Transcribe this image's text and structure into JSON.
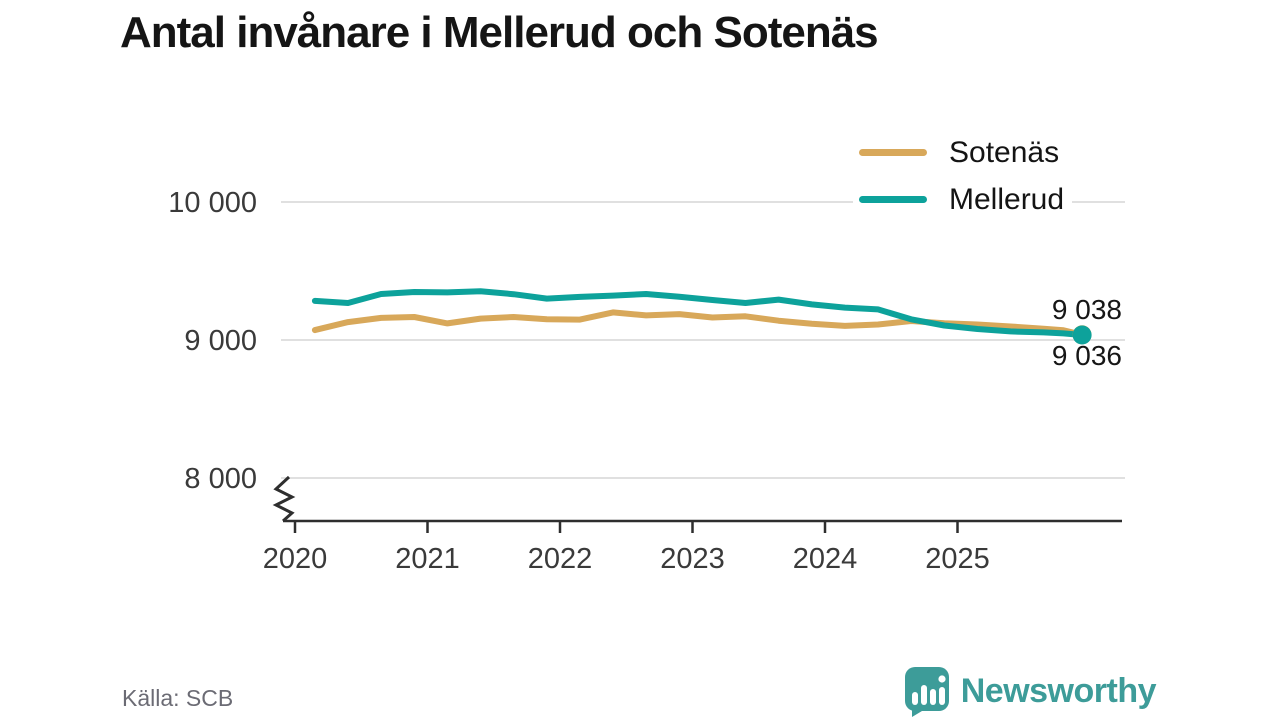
{
  "source_note": "Källa: SCB",
  "branding": {
    "logo_text": "Newsworthy",
    "logo_icon": "bar-chart-speech-bubble",
    "color": "#3d9c99"
  },
  "chart_data": {
    "type": "line",
    "title": "Antal invånare i Mellerud och Sotenäs",
    "xlabel": "",
    "ylabel": "",
    "x_ticks": [
      2020,
      2021,
      2022,
      2023,
      2024,
      2025
    ],
    "y_ticks": [
      {
        "label": "10 000",
        "value": 10000
      },
      {
        "label": "9 000",
        "value": 9000
      },
      {
        "label": "8 000",
        "value": 8000
      }
    ],
    "grid": true,
    "axis_break_at_bottom": true,
    "legend_position": "top-right",
    "style": {
      "grid_color": "#e0e0e0",
      "axis_color": "#2e2e2e",
      "tick_text_color": "#3a3a3a"
    },
    "series": [
      {
        "name": "Sotenäs",
        "color": "#d8a85a",
        "end_label": "9 038",
        "end_value": 9038,
        "points": [
          [
            2020.15,
            9072
          ],
          [
            2020.4,
            9130
          ],
          [
            2020.65,
            9160
          ],
          [
            2020.9,
            9167
          ],
          [
            2021.15,
            9120
          ],
          [
            2021.4,
            9155
          ],
          [
            2021.65,
            9167
          ],
          [
            2021.9,
            9150
          ],
          [
            2022.15,
            9148
          ],
          [
            2022.4,
            9200
          ],
          [
            2022.65,
            9178
          ],
          [
            2022.9,
            9188
          ],
          [
            2023.15,
            9163
          ],
          [
            2023.4,
            9172
          ],
          [
            2023.65,
            9140
          ],
          [
            2023.9,
            9118
          ],
          [
            2024.15,
            9102
          ],
          [
            2024.4,
            9112
          ],
          [
            2024.65,
            9138
          ],
          [
            2024.9,
            9122
          ],
          [
            2025.15,
            9112
          ],
          [
            2025.4,
            9098
          ],
          [
            2025.65,
            9082
          ],
          [
            2025.8,
            9070
          ],
          [
            2025.94,
            9038
          ]
        ]
      },
      {
        "name": "Mellerud",
        "color": "#0da29b",
        "end_label": "9 036",
        "end_value": 9036,
        "points": [
          [
            2020.15,
            9283
          ],
          [
            2020.4,
            9268
          ],
          [
            2020.65,
            9333
          ],
          [
            2020.9,
            9348
          ],
          [
            2021.15,
            9345
          ],
          [
            2021.4,
            9353
          ],
          [
            2021.65,
            9332
          ],
          [
            2021.9,
            9300
          ],
          [
            2022.15,
            9312
          ],
          [
            2022.4,
            9322
          ],
          [
            2022.65,
            9333
          ],
          [
            2022.9,
            9313
          ],
          [
            2023.15,
            9290
          ],
          [
            2023.4,
            9268
          ],
          [
            2023.65,
            9293
          ],
          [
            2023.9,
            9258
          ],
          [
            2024.15,
            9235
          ],
          [
            2024.4,
            9222
          ],
          [
            2024.65,
            9150
          ],
          [
            2024.9,
            9105
          ],
          [
            2025.15,
            9080
          ],
          [
            2025.4,
            9062
          ],
          [
            2025.65,
            9055
          ],
          [
            2025.8,
            9048
          ],
          [
            2025.94,
            9036
          ]
        ]
      }
    ]
  }
}
